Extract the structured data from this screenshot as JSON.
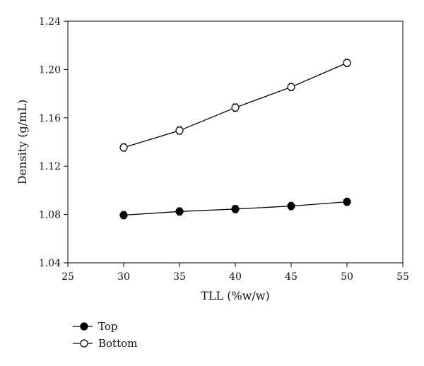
{
  "chart_data": {
    "type": "line",
    "title": "",
    "xlabel": "TLL (%w/w)",
    "ylabel": "Density (g/mL)",
    "xlim": [
      25,
      55
    ],
    "ylim": [
      1.04,
      1.24
    ],
    "x_ticks": [
      "25",
      "30",
      "35",
      "40",
      "45",
      "50",
      "55"
    ],
    "y_ticks": [
      "1.04",
      "1.08",
      "1.12",
      "1.16",
      "1.20",
      "1.24"
    ],
    "grid": false,
    "legend_position": "bottom-left",
    "series": [
      {
        "name": "Top",
        "marker": "filled-circle",
        "color": "#000000",
        "x": [
          30,
          35,
          40,
          45,
          50
        ],
        "y": [
          1.0795,
          1.0825,
          1.0845,
          1.087,
          1.0905
        ],
        "error": [
          0.003,
          0.003,
          0.003,
          0.003,
          0.003
        ]
      },
      {
        "name": "Bottom",
        "marker": "open-circle",
        "color": "#000000",
        "x": [
          30,
          35,
          40,
          45,
          50
        ],
        "y": [
          1.1355,
          1.1495,
          1.1685,
          1.1855,
          1.2055
        ],
        "error": [
          0.003,
          0.003,
          0.003,
          0.003,
          0.003
        ]
      }
    ]
  }
}
